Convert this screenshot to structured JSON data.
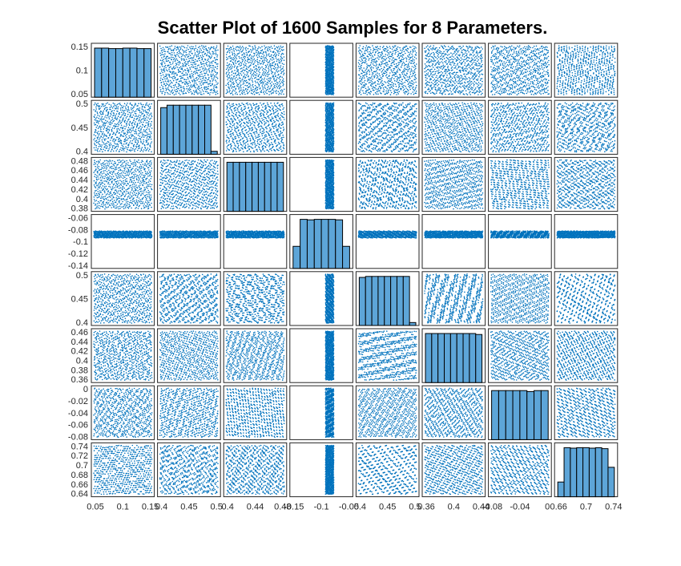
{
  "chart_data": {
    "type": "scatter",
    "title": "Scatter Plot of 1600 Samples for 8 Parameters.",
    "n_samples": 1600,
    "n_parameters": 8,
    "point_color": "#0072BD",
    "bar_color": "#5DA5D8",
    "diagonal": "histogram",
    "parameters": [
      {
        "range": [
          0.05,
          0.15
        ],
        "y_ticks": [
          "0.15",
          "0.1",
          "0.05"
        ],
        "x_ticks": [
          "0.05",
          "0.1",
          "0.15"
        ],
        "hist_counts": [
          1,
          1,
          0.99,
          0.99,
          1,
          1,
          0.99,
          0.99
        ]
      },
      {
        "range": [
          0.4,
          0.5
        ],
        "y_ticks": [
          "0.5",
          "0.45",
          "0.4"
        ],
        "x_ticks": [
          "0.4",
          "0.45",
          "0.5"
        ],
        "hist_counts": [
          0.95,
          1,
          1,
          1,
          1,
          1,
          1,
          1,
          0.06
        ]
      },
      {
        "range": [
          0.38,
          0.48
        ],
        "y_ticks": [
          "0.48",
          "0.46",
          "0.44",
          "0.42",
          "0.4",
          "0.38"
        ],
        "x_ticks": [
          "0.4",
          "0.44",
          "0.48"
        ],
        "hist_counts": [
          1,
          1,
          1,
          1,
          1,
          1,
          1,
          1,
          1
        ]
      },
      {
        "range": [
          -0.15,
          -0.05
        ],
        "y_ticks": [
          "-0.06",
          "-0.08",
          "-0.1",
          "-0.12",
          "-0.14"
        ],
        "x_ticks": [
          "-0.15",
          "-0.1",
          "-0.05"
        ],
        "hist_counts": [
          0.45,
          1,
          0.99,
          1,
          1,
          1,
          0.99,
          0.45
        ]
      },
      {
        "range": [
          0.4,
          0.5
        ],
        "y_ticks": [
          "0.5",
          "0.45",
          "0.4"
        ],
        "x_ticks": [
          "0.4",
          "0.45",
          "0.5"
        ],
        "hist_counts": [
          0.98,
          1,
          1,
          1,
          1,
          1,
          1,
          1,
          0.06
        ]
      },
      {
        "range": [
          0.36,
          0.46
        ],
        "y_ticks": [
          "0.46",
          "0.44",
          "0.42",
          "0.4",
          "0.38",
          "0.36"
        ],
        "x_ticks": [
          "0.36",
          "0.4",
          "0.44"
        ],
        "hist_counts": [
          1,
          1,
          1,
          1,
          1,
          1,
          1,
          1,
          0.98
        ]
      },
      {
        "range": [
          -0.09,
          0.01
        ],
        "y_ticks": [
          "0",
          "-0.02",
          "-0.04",
          "-0.06",
          "-0.08"
        ],
        "x_ticks": [
          "-0.08",
          "-0.04",
          "0"
        ],
        "hist_counts": [
          1,
          1,
          1,
          1,
          1,
          0.98,
          1,
          1
        ]
      },
      {
        "range": [
          0.635,
          0.745
        ],
        "y_ticks": [
          "0.74",
          "0.72",
          "0.7",
          "0.68",
          "0.66",
          "0.64"
        ],
        "x_ticks": [
          "0.66",
          "0.7",
          "0.74"
        ],
        "hist_counts": [
          0.3,
          1,
          0.99,
          1,
          1,
          0.99,
          1,
          0.98,
          0.6
        ]
      }
    ]
  }
}
